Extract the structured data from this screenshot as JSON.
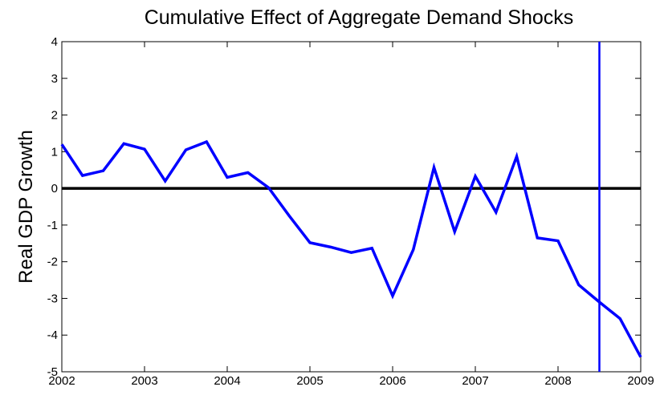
{
  "chart_data": {
    "type": "line",
    "title": "Cumulative Effect of Aggregate Demand Shocks",
    "y_label": "Real GDP Growth",
    "x": [
      2002,
      2002.25,
      2002.5,
      2002.75,
      2003,
      2003.25,
      2003.5,
      2003.75,
      2004,
      2004.25,
      2004.5,
      2004.75,
      2005,
      2005.25,
      2005.5,
      2005.75,
      2006,
      2006.25,
      2006.5,
      2006.75,
      2007,
      2007.25,
      2007.5,
      2007.75,
      2008,
      2008.25,
      2008.5,
      2008.75,
      2009
    ],
    "series": [
      {
        "color": "#0000ff",
        "values": [
          1.2,
          0.35,
          0.48,
          1.22,
          1.07,
          0.2,
          1.05,
          1.27,
          0.3,
          0.43,
          0.02,
          -0.75,
          -1.48,
          -1.6,
          -1.75,
          -1.63,
          -2.93,
          -1.67,
          0.57,
          -1.18,
          0.33,
          -0.65,
          0.87,
          -1.35,
          -1.43,
          -2.63,
          -3.1,
          -3.55,
          -4.6
        ]
      }
    ],
    "xlim": [
      2002,
      2009
    ],
    "xticks": [
      2002,
      2003,
      2004,
      2005,
      2006,
      2007,
      2008,
      2009
    ],
    "ylim": [
      -5,
      4
    ],
    "yticks": [
      -5,
      -4,
      -3,
      -2,
      -1,
      0,
      1,
      2,
      3,
      4
    ],
    "hline": {
      "value": 0,
      "color": "#000000"
    },
    "vline": {
      "value": 2008.5,
      "color": "#0000ff"
    }
  }
}
